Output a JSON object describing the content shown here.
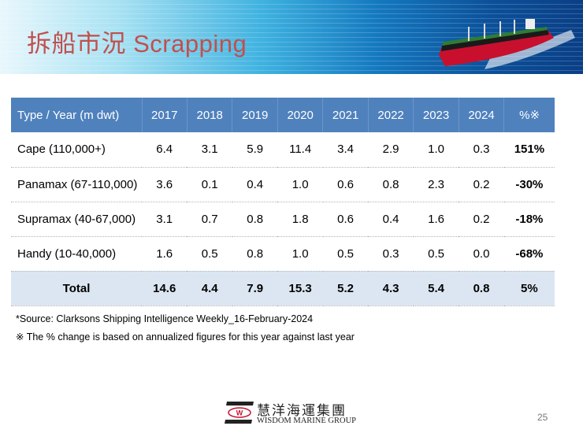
{
  "slide": {
    "title": "拆船市況 Scrapping",
    "page_number": "25"
  },
  "table": {
    "headers": [
      "Type / Year (m dwt)",
      "2017",
      "2018",
      "2019",
      "2020",
      "2021",
      "2022",
      "2023",
      "2024",
      "%※"
    ],
    "rows": [
      [
        "Cape (110,000+)",
        "6.4",
        "3.1",
        "5.9",
        "11.4",
        "3.4",
        "2.9",
        "1.0",
        "0.3",
        "151%"
      ],
      [
        "Panamax (67-110,000)",
        "3.6",
        "0.1",
        "0.4",
        "1.0",
        "0.6",
        "0.8",
        "2.3",
        "0.2",
        "-30%"
      ],
      [
        "Supramax (40-67,000)",
        "3.1",
        "0.7",
        "0.8",
        "1.8",
        "0.6",
        "0.4",
        "1.6",
        "0.2",
        "-18%"
      ],
      [
        "Handy (10-40,000)",
        "1.6",
        "0.5",
        "0.8",
        "1.0",
        "0.5",
        "0.3",
        "0.5",
        "0.0",
        "-68%"
      ]
    ],
    "total": [
      "Total",
      "14.6",
      "4.4",
      "7.9",
      "15.3",
      "5.2",
      "4.3",
      "5.4",
      "0.8",
      "5%"
    ]
  },
  "notes": {
    "source": "*Source: Clarksons Shipping Intelligence Weekly_16-February-2024",
    "footnote": "※ The % change is based on annualized figures for this year against last year"
  },
  "logo": {
    "chinese": "慧洋海運集團",
    "english": "WISDOM MARINE GROUP",
    "mark": "W"
  },
  "colors": {
    "header": "#4f81bd",
    "total_row": "#dce6f2",
    "title": "#c0504d"
  }
}
